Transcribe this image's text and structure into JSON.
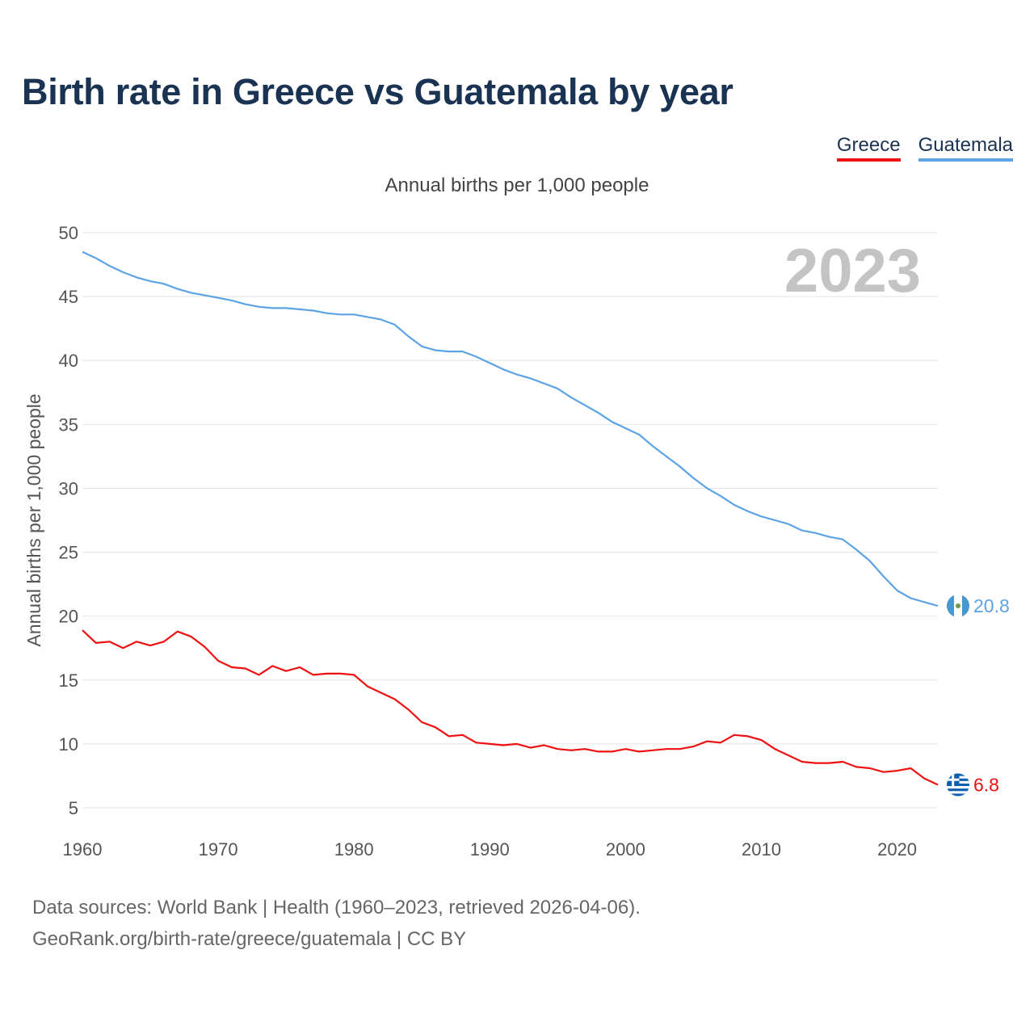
{
  "title": "Birth rate in Greece vs Guatemala by year",
  "legend": [
    {
      "name": "Greece",
      "color": "#ee1111"
    },
    {
      "name": "Guatemala",
      "color": "#5ca3e6"
    }
  ],
  "subtitle": "Annual births per 1,000 people",
  "year_label": "2023",
  "footer": {
    "line1": "Data sources: World Bank | Health (1960–2023, retrieved 2026-04-06).",
    "line2": "GeoRank.org/birth-rate/greece/guatemala | CC BY"
  },
  "chart_data": {
    "type": "line",
    "title": "Birth rate in Greece vs Guatemala by year",
    "xlabel": "",
    "ylabel": "Annual births per 1,000 people",
    "xlim": [
      1960,
      2023
    ],
    "ylim": [
      5,
      50
    ],
    "yticks": [
      5,
      10,
      15,
      20,
      25,
      30,
      35,
      40,
      45,
      50
    ],
    "xticks": [
      1960,
      1970,
      1980,
      1990,
      2000,
      2010,
      2020
    ],
    "grid": true,
    "legend_position": "top-right",
    "x": [
      1960,
      1961,
      1962,
      1963,
      1964,
      1965,
      1966,
      1967,
      1968,
      1969,
      1970,
      1971,
      1972,
      1973,
      1974,
      1975,
      1976,
      1977,
      1978,
      1979,
      1980,
      1981,
      1982,
      1983,
      1984,
      1985,
      1986,
      1987,
      1988,
      1989,
      1990,
      1991,
      1992,
      1993,
      1994,
      1995,
      1996,
      1997,
      1998,
      1999,
      2000,
      2001,
      2002,
      2003,
      2004,
      2005,
      2006,
      2007,
      2008,
      2009,
      2010,
      2011,
      2012,
      2013,
      2014,
      2015,
      2016,
      2017,
      2018,
      2019,
      2020,
      2021,
      2022,
      2023
    ],
    "series": [
      {
        "name": "Greece",
        "color": "#ee1111",
        "end_label": "6.8",
        "values": [
          18.9,
          17.9,
          18.0,
          17.5,
          18.0,
          17.7,
          18.0,
          18.8,
          18.4,
          17.6,
          16.5,
          16.0,
          15.9,
          15.4,
          16.1,
          15.7,
          16.0,
          15.4,
          15.5,
          15.5,
          15.4,
          14.5,
          14.0,
          13.5,
          12.7,
          11.7,
          11.3,
          10.6,
          10.7,
          10.1,
          10.0,
          9.9,
          10.0,
          9.7,
          9.9,
          9.6,
          9.5,
          9.6,
          9.4,
          9.4,
          9.6,
          9.4,
          9.5,
          9.6,
          9.6,
          9.8,
          10.2,
          10.1,
          10.7,
          10.6,
          10.3,
          9.6,
          9.1,
          8.6,
          8.5,
          8.5,
          8.6,
          8.2,
          8.1,
          7.8,
          7.9,
          8.1,
          7.3,
          6.8
        ]
      },
      {
        "name": "Guatemala",
        "color": "#5ca3e6",
        "end_label": "20.8",
        "values": [
          48.5,
          48.0,
          47.4,
          46.9,
          46.5,
          46.2,
          46.0,
          45.6,
          45.3,
          45.1,
          44.9,
          44.7,
          44.4,
          44.2,
          44.1,
          44.1,
          44.0,
          43.9,
          43.7,
          43.6,
          43.6,
          43.4,
          43.2,
          42.8,
          41.9,
          41.1,
          40.8,
          40.7,
          40.7,
          40.3,
          39.8,
          39.3,
          38.9,
          38.6,
          38.2,
          37.8,
          37.1,
          36.5,
          35.9,
          35.2,
          34.7,
          34.2,
          33.3,
          32.5,
          31.7,
          30.8,
          30.0,
          29.4,
          28.7,
          28.2,
          27.8,
          27.5,
          27.2,
          26.7,
          26.5,
          26.2,
          26.0,
          25.2,
          24.3,
          23.1,
          22.0,
          21.4,
          21.1,
          20.8
        ]
      }
    ]
  }
}
